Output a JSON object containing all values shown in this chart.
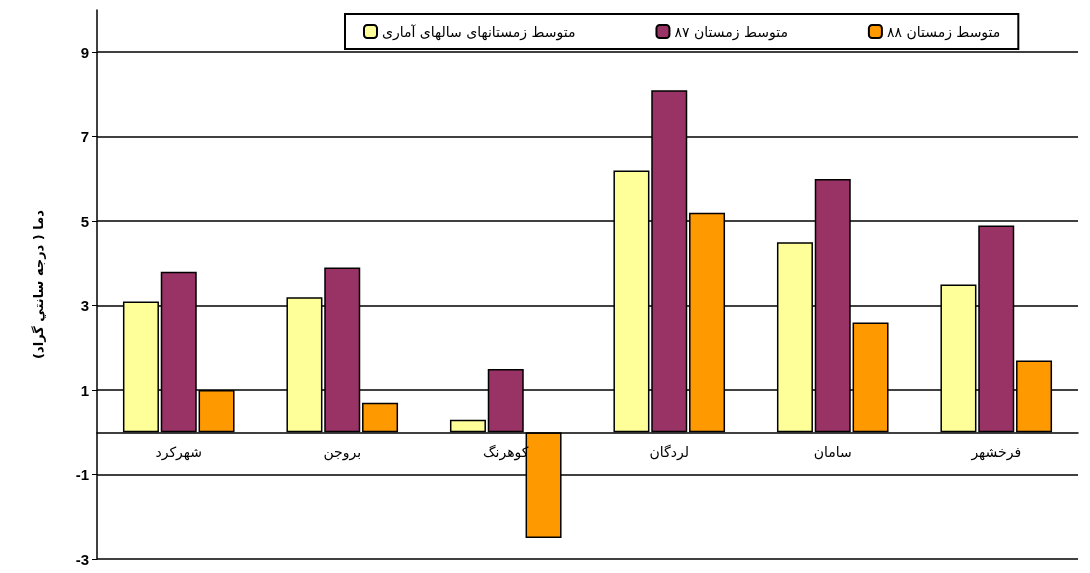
{
  "chart_data": {
    "type": "bar",
    "ylabel": "دما ( درجه سانتي گراد)",
    "categories": [
      "شهرکرد",
      "بروجن",
      "کوهرنگ",
      "لردگان",
      "سامان",
      "فرخشهر"
    ],
    "series": [
      {
        "name": "متوسط زمستانهای سالهای آماری",
        "color": "#ffff99",
        "values": [
          3.1,
          3.2,
          0.3,
          6.2,
          4.5,
          3.5
        ]
      },
      {
        "name": "متوسط زمستان ۸۷",
        "color": "#993366",
        "values": [
          3.8,
          3.9,
          1.5,
          8.1,
          6.0,
          4.9
        ]
      },
      {
        "name": "متوسط زمستان ۸۸",
        "color": "#ff9900",
        "values": [
          1.0,
          0.7,
          -2.5,
          5.2,
          2.6,
          1.7
        ]
      }
    ],
    "ylim": [
      -3,
      10
    ],
    "yticks": [
      -3,
      -1,
      1,
      3,
      5,
      7,
      9
    ],
    "grid": "y",
    "legend": "top"
  }
}
